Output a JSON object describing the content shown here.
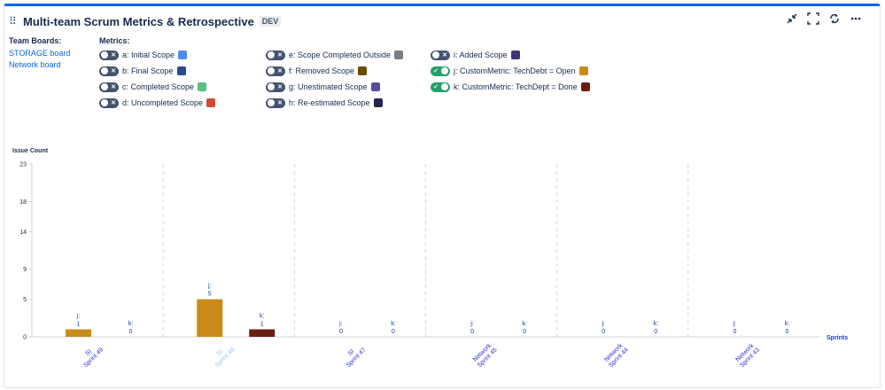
{
  "header": {
    "title": "Multi-team Scrum Metrics & Retrospective",
    "env_badge": "DEV"
  },
  "toolbar": {
    "icons": [
      "collapse-icon",
      "fullscreen-icon",
      "refresh-icon",
      "more-icon"
    ]
  },
  "boards": {
    "label": "Team Boards:",
    "items": [
      "STORAGE board",
      "Network board"
    ]
  },
  "metrics": {
    "label": "Metrics:",
    "items": [
      {
        "label": "a: Initial Scope",
        "on": false,
        "color": "#4c8bf5"
      },
      {
        "label": "b: Final Scope",
        "on": false,
        "color": "#2a4b8d"
      },
      {
        "label": "c: Completed Scope",
        "on": false,
        "color": "#5cbf83"
      },
      {
        "label": "d: Uncompleted Scope",
        "on": false,
        "color": "#d24a35"
      },
      {
        "label": "e: Scope Completed Outside",
        "on": false,
        "color": "#7a7f87"
      },
      {
        "label": "f: Removed Scope",
        "on": false,
        "color": "#6b4a06"
      },
      {
        "label": "g: Unestimated Scope",
        "on": false,
        "color": "#5c4a9e"
      },
      {
        "label": "h: Re-estimated Scope",
        "on": false,
        "color": "#25264d"
      },
      {
        "label": "i: Added Scope",
        "on": false,
        "color": "#3b3573"
      },
      {
        "label": "j: CustomMetric: TechDebt = Open",
        "on": true,
        "color": "#c98c1a"
      },
      {
        "label": "k: CustomMetric: TechDept = Done",
        "on": true,
        "color": "#6b1d14"
      }
    ]
  },
  "chart_data": {
    "type": "bar",
    "ylabel": "Issue Count",
    "xlabel": "Sprints",
    "ylim": [
      0,
      23
    ],
    "yticks": [
      0,
      5,
      9,
      14,
      18,
      23
    ],
    "grid": "vertical dashed between sprints",
    "categories": [
      "SI Sprint 49",
      "SI Sprint 48",
      "SI Sprint 47",
      "Network Sprint 45",
      "Network Sprint 44",
      "Network Sprint 43"
    ],
    "category_colors": [
      "#2b2fd6",
      "#9cc4f5",
      "#2b2fd6",
      "#2b2fd6",
      "#2b2fd6",
      "#2b2fd6"
    ],
    "series": [
      {
        "name": "j:",
        "color": "#c98c1a",
        "values": [
          1,
          5,
          0,
          0,
          0,
          0
        ]
      },
      {
        "name": "k:",
        "color": "#6b1d14",
        "values": [
          0,
          1,
          0,
          0,
          0,
          0
        ]
      }
    ]
  }
}
